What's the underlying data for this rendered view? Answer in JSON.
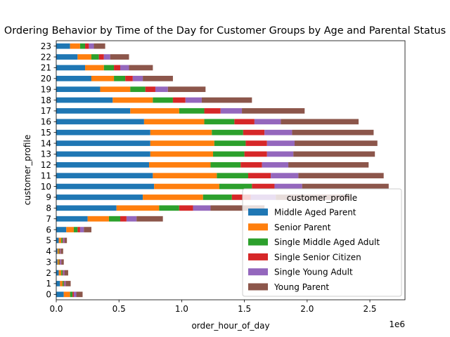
{
  "chart_data": {
    "type": "bar",
    "orientation": "horizontal",
    "stacked": true,
    "title": "Ordering Behavior by Time of the Day for Customer Groups by Age and Parental Status",
    "xlabel": "order_hour_of_day",
    "ylabel": "customer_profile",
    "x_offset_text": "1e6",
    "xlim": [
      0,
      2.78
    ],
    "x_ticks": [
      0.0,
      0.5,
      1.0,
      1.5,
      2.0,
      2.5
    ],
    "x_tick_labels": [
      "0.0",
      "0.5",
      "1.0",
      "1.5",
      "2.0",
      "2.5"
    ],
    "categories": [
      "0",
      "1",
      "2",
      "3",
      "4",
      "5",
      "6",
      "7",
      "8",
      "9",
      "10",
      "11",
      "12",
      "13",
      "14",
      "15",
      "16",
      "17",
      "18",
      "19",
      "20",
      "21",
      "22",
      "23"
    ],
    "legend": {
      "title": "customer_profile",
      "placement": "lower-right"
    },
    "series": [
      {
        "name": "Middle Aged Parent",
        "color": "#1f77b4",
        "values": [
          0.06,
          0.03,
          0.02,
          0.01,
          0.01,
          0.02,
          0.08,
          0.25,
          0.48,
          0.69,
          0.78,
          0.77,
          0.74,
          0.75,
          0.75,
          0.75,
          0.7,
          0.59,
          0.45,
          0.35,
          0.28,
          0.23,
          0.17,
          0.11
        ]
      },
      {
        "name": "Senior Parent",
        "color": "#ff7f0e",
        "values": [
          0.05,
          0.02,
          0.02,
          0.01,
          0.01,
          0.02,
          0.06,
          0.17,
          0.34,
          0.48,
          0.52,
          0.51,
          0.49,
          0.5,
          0.51,
          0.49,
          0.48,
          0.39,
          0.32,
          0.24,
          0.18,
          0.15,
          0.11,
          0.08
        ]
      },
      {
        "name": "Single Middle Aged Adult",
        "color": "#2ca02c",
        "values": [
          0.02,
          0.01,
          0.01,
          0.005,
          0.005,
          0.01,
          0.03,
          0.09,
          0.16,
          0.23,
          0.26,
          0.25,
          0.24,
          0.25,
          0.25,
          0.25,
          0.24,
          0.2,
          0.16,
          0.12,
          0.09,
          0.08,
          0.06,
          0.04
        ]
      },
      {
        "name": "Single Senior Citizen",
        "color": "#d62728",
        "values": [
          0.01,
          0.005,
          0.005,
          0.005,
          0.005,
          0.005,
          0.02,
          0.05,
          0.11,
          0.15,
          0.18,
          0.18,
          0.17,
          0.18,
          0.17,
          0.17,
          0.16,
          0.13,
          0.1,
          0.08,
          0.06,
          0.05,
          0.04,
          0.03
        ]
      },
      {
        "name": "Single Young Adult",
        "color": "#9467bd",
        "values": [
          0.02,
          0.01,
          0.01,
          0.01,
          0.005,
          0.01,
          0.03,
          0.08,
          0.14,
          0.2,
          0.22,
          0.22,
          0.21,
          0.21,
          0.22,
          0.22,
          0.21,
          0.17,
          0.13,
          0.1,
          0.08,
          0.07,
          0.05,
          0.04
        ]
      },
      {
        "name": "Young Parent",
        "color": "#8c564b",
        "values": [
          0.05,
          0.04,
          0.03,
          0.02,
          0.02,
          0.02,
          0.06,
          0.21,
          0.43,
          0.6,
          0.69,
          0.68,
          0.64,
          0.65,
          0.66,
          0.65,
          0.62,
          0.5,
          0.4,
          0.3,
          0.24,
          0.19,
          0.15,
          0.09
        ]
      }
    ]
  }
}
